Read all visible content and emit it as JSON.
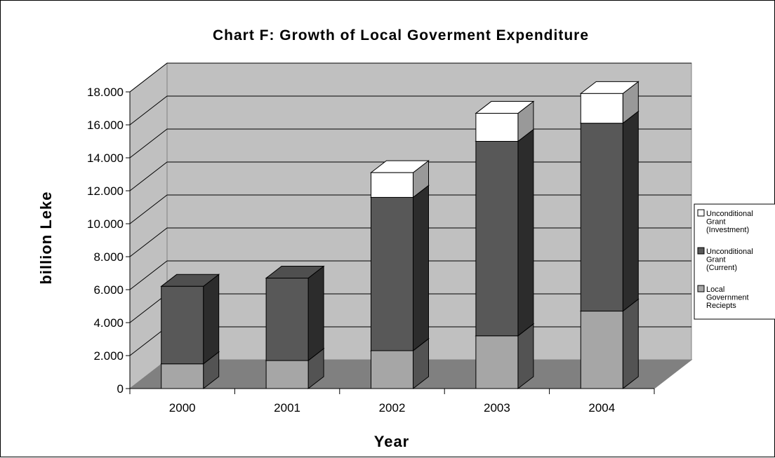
{
  "chart_data": {
    "type": "bar",
    "stacked": true,
    "three_d": true,
    "title": "Chart F: Growth of Local Goverment Expenditure",
    "xlabel": "Year",
    "ylabel": "billion Leke",
    "categories": [
      "2000",
      "2001",
      "2002",
      "2003",
      "2004"
    ],
    "ylim": [
      0,
      18
    ],
    "yticks": [
      0,
      2,
      4,
      6,
      8,
      10,
      12,
      14,
      16,
      18
    ],
    "ytick_labels": [
      "0",
      "2.000",
      "4.000",
      "6.000",
      "8.000",
      "10.000",
      "12.000",
      "14.000",
      "16.000",
      "18.000"
    ],
    "grid": true,
    "legend_position": "right",
    "series": [
      {
        "name": "Local Government Reciepts",
        "legend_lines": [
          "Local",
          "Government",
          "Reciepts"
        ],
        "color": "#a6a6a6",
        "values": [
          1.5,
          1.7,
          2.3,
          3.2,
          4.7
        ]
      },
      {
        "name": "Unconditional Grant (Current)",
        "legend_lines": [
          "Unconditional",
          "Grant",
          "(Current)"
        ],
        "color": "#585858",
        "values": [
          4.7,
          5.0,
          9.3,
          11.8,
          11.4
        ]
      },
      {
        "name": "Unconditional Grant (Investment)",
        "legend_lines": [
          "Unconditional",
          "Grant",
          "(Investment)"
        ],
        "color": "#ffffff",
        "values": [
          0.0,
          0.0,
          1.5,
          1.7,
          1.8
        ]
      }
    ]
  }
}
